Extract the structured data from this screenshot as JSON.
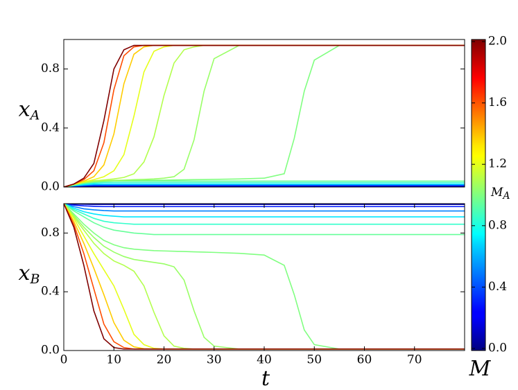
{
  "chart_data": [
    {
      "type": "line",
      "ylabel": {
        "main": "x",
        "sub": "A"
      },
      "x": [
        0,
        2,
        4,
        6,
        8,
        10,
        12,
        14,
        16,
        18,
        20,
        22,
        24,
        26,
        28,
        30,
        35,
        40,
        44,
        46,
        48,
        50,
        55,
        60,
        70,
        80
      ],
      "xlim": [
        0,
        80
      ],
      "ylim": [
        0,
        1
      ],
      "yticks": [
        {
          "value": 0,
          "label": "0.0"
        },
        0.4,
        0.8
      ],
      "series": [
        {
          "color": "#0000b3",
          "values": [
            0,
            0.003,
            0.004,
            0.005,
            0.005,
            0.005,
            0.005,
            0.005,
            0.005,
            0.005,
            0.005,
            0.005,
            0.005,
            0.005,
            0.005,
            0.005,
            0.005,
            0.005,
            0.005,
            0.005,
            0.005,
            0.005,
            0.005,
            0.005,
            0.005,
            0.005
          ]
        },
        {
          "color": "#001aff",
          "values": [
            0,
            0.005,
            0.008,
            0.01,
            0.01,
            0.01,
            0.01,
            0.01,
            0.01,
            0.01,
            0.01,
            0.01,
            0.01,
            0.01,
            0.01,
            0.01,
            0.01,
            0.01,
            0.01,
            0.01,
            0.01,
            0.01,
            0.01,
            0.01,
            0.01,
            0.01
          ]
        },
        {
          "color": "#0080ff",
          "values": [
            0,
            0.007,
            0.012,
            0.015,
            0.015,
            0.015,
            0.015,
            0.015,
            0.015,
            0.015,
            0.015,
            0.015,
            0.015,
            0.015,
            0.015,
            0.015,
            0.015,
            0.015,
            0.015,
            0.015,
            0.015,
            0.015,
            0.015,
            0.015,
            0.015,
            0.015
          ]
        },
        {
          "color": "#00e6ff",
          "values": [
            0,
            0.01,
            0.016,
            0.02,
            0.02,
            0.02,
            0.02,
            0.02,
            0.02,
            0.02,
            0.02,
            0.02,
            0.02,
            0.02,
            0.02,
            0.02,
            0.02,
            0.02,
            0.02,
            0.02,
            0.02,
            0.02,
            0.02,
            0.02,
            0.02,
            0.02
          ]
        },
        {
          "color": "#33ffcc",
          "values": [
            0,
            0.012,
            0.022,
            0.027,
            0.03,
            0.03,
            0.03,
            0.03,
            0.03,
            0.03,
            0.03,
            0.03,
            0.03,
            0.03,
            0.03,
            0.03,
            0.03,
            0.03,
            0.03,
            0.03,
            0.03,
            0.03,
            0.03,
            0.03,
            0.03,
            0.03
          ]
        },
        {
          "color": "#66ff99",
          "values": [
            0,
            0.014,
            0.026,
            0.033,
            0.037,
            0.04,
            0.04,
            0.04,
            0.04,
            0.04,
            0.04,
            0.04,
            0.04,
            0.04,
            0.04,
            0.04,
            0.04,
            0.04,
            0.04,
            0.04,
            0.04,
            0.04,
            0.04,
            0.04,
            0.04,
            0.04
          ]
        },
        {
          "color": "#80ff80",
          "values": [
            0,
            0.015,
            0.028,
            0.036,
            0.04,
            0.042,
            0.043,
            0.044,
            0.045,
            0.046,
            0.047,
            0.048,
            0.049,
            0.05,
            0.051,
            0.052,
            0.055,
            0.06,
            0.09,
            0.33,
            0.65,
            0.86,
            0.96,
            0.96,
            0.96,
            0.96
          ]
        },
        {
          "color": "#99ff66",
          "values": [
            0,
            0.016,
            0.03,
            0.038,
            0.042,
            0.045,
            0.047,
            0.05,
            0.052,
            0.055,
            0.06,
            0.07,
            0.12,
            0.32,
            0.65,
            0.87,
            0.96,
            0.96,
            0.96,
            0.96,
            0.96,
            0.96,
            0.96,
            0.96,
            0.96,
            0.96
          ]
        },
        {
          "color": "#b3ff4d",
          "values": [
            0,
            0.017,
            0.032,
            0.042,
            0.048,
            0.055,
            0.065,
            0.09,
            0.17,
            0.34,
            0.62,
            0.84,
            0.93,
            0.95,
            0.96,
            0.96,
            0.96,
            0.96,
            0.96,
            0.96,
            0.96,
            0.96,
            0.96,
            0.96,
            0.96,
            0.96
          ]
        },
        {
          "color": "#e6ff1a",
          "values": [
            0,
            0.018,
            0.035,
            0.05,
            0.07,
            0.11,
            0.22,
            0.48,
            0.78,
            0.92,
            0.95,
            0.96,
            0.96,
            0.96,
            0.96,
            0.96,
            0.96,
            0.96,
            0.96,
            0.96,
            0.96,
            0.96,
            0.96,
            0.96,
            0.96,
            0.96
          ]
        },
        {
          "color": "#ffcc00",
          "values": [
            0,
            0.02,
            0.04,
            0.07,
            0.15,
            0.36,
            0.7,
            0.9,
            0.95,
            0.96,
            0.96,
            0.96,
            0.96,
            0.96,
            0.96,
            0.96,
            0.96,
            0.96,
            0.96,
            0.96,
            0.96,
            0.96,
            0.96,
            0.96,
            0.96,
            0.96
          ]
        },
        {
          "color": "#ff4d00",
          "values": [
            0,
            0.02,
            0.05,
            0.11,
            0.3,
            0.66,
            0.89,
            0.95,
            0.96,
            0.96,
            0.96,
            0.96,
            0.96,
            0.96,
            0.96,
            0.96,
            0.96,
            0.96,
            0.96,
            0.96,
            0.96,
            0.96,
            0.96,
            0.96,
            0.96,
            0.96
          ]
        },
        {
          "color": "#800000",
          "values": [
            0,
            0.02,
            0.06,
            0.16,
            0.45,
            0.8,
            0.93,
            0.96,
            0.96,
            0.96,
            0.96,
            0.96,
            0.96,
            0.96,
            0.96,
            0.96,
            0.96,
            0.96,
            0.96,
            0.96,
            0.96,
            0.96,
            0.96,
            0.96,
            0.96,
            0.96
          ]
        }
      ]
    },
    {
      "type": "line",
      "ylabel": {
        "main": "x",
        "sub": "B"
      },
      "xlabel": "t",
      "x": [
        0,
        2,
        4,
        6,
        8,
        10,
        12,
        14,
        16,
        18,
        20,
        22,
        24,
        26,
        28,
        30,
        35,
        40,
        44,
        46,
        48,
        50,
        55,
        60,
        70,
        80
      ],
      "xlim": [
        0,
        80
      ],
      "ylim": [
        0,
        1
      ],
      "xticks": [
        0,
        10,
        20,
        30,
        40,
        50,
        60,
        70
      ],
      "yticks": [
        {
          "value": 0,
          "label": "0.0"
        },
        0.4,
        0.8
      ],
      "series": [
        {
          "color": "#0000b3",
          "values": [
            1,
            0.997,
            0.996,
            0.995,
            0.995,
            0.995,
            0.995,
            0.995,
            0.995,
            0.995,
            0.995,
            0.995,
            0.995,
            0.995,
            0.995,
            0.995,
            0.995,
            0.995,
            0.995,
            0.995,
            0.995,
            0.995,
            0.995,
            0.995,
            0.995,
            0.995
          ]
        },
        {
          "color": "#001aff",
          "values": [
            1,
            0.99,
            0.985,
            0.982,
            0.98,
            0.98,
            0.98,
            0.98,
            0.98,
            0.98,
            0.98,
            0.98,
            0.98,
            0.98,
            0.98,
            0.98,
            0.98,
            0.98,
            0.98,
            0.98,
            0.98,
            0.98,
            0.98,
            0.98,
            0.98,
            0.98
          ]
        },
        {
          "color": "#0080ff",
          "values": [
            1,
            0.98,
            0.965,
            0.958,
            0.953,
            0.95,
            0.95,
            0.95,
            0.95,
            0.95,
            0.95,
            0.95,
            0.95,
            0.95,
            0.95,
            0.95,
            0.95,
            0.95,
            0.95,
            0.95,
            0.95,
            0.95,
            0.95,
            0.95,
            0.95,
            0.95
          ]
        },
        {
          "color": "#00e6ff",
          "values": [
            1,
            0.97,
            0.945,
            0.93,
            0.92,
            0.915,
            0.91,
            0.91,
            0.91,
            0.91,
            0.91,
            0.91,
            0.91,
            0.91,
            0.91,
            0.91,
            0.91,
            0.91,
            0.91,
            0.91,
            0.91,
            0.91,
            0.91,
            0.91,
            0.91,
            0.91
          ]
        },
        {
          "color": "#33ffcc",
          "values": [
            1,
            0.96,
            0.93,
            0.9,
            0.88,
            0.87,
            0.865,
            0.86,
            0.86,
            0.86,
            0.86,
            0.86,
            0.86,
            0.86,
            0.86,
            0.86,
            0.86,
            0.86,
            0.86,
            0.86,
            0.86,
            0.86,
            0.86,
            0.86,
            0.86,
            0.86
          ]
        },
        {
          "color": "#66ff99",
          "values": [
            1,
            0.95,
            0.91,
            0.87,
            0.84,
            0.82,
            0.81,
            0.8,
            0.795,
            0.79,
            0.79,
            0.79,
            0.79,
            0.79,
            0.79,
            0.79,
            0.79,
            0.79,
            0.79,
            0.79,
            0.79,
            0.79,
            0.79,
            0.79,
            0.79,
            0.79
          ]
        },
        {
          "color": "#80ff80",
          "values": [
            1,
            0.93,
            0.86,
            0.8,
            0.75,
            0.72,
            0.7,
            0.69,
            0.685,
            0.68,
            0.678,
            0.676,
            0.674,
            0.672,
            0.67,
            0.668,
            0.662,
            0.65,
            0.58,
            0.38,
            0.14,
            0.04,
            0.01,
            0.01,
            0.01,
            0.01
          ]
        },
        {
          "color": "#99ff66",
          "values": [
            1,
            0.92,
            0.84,
            0.77,
            0.71,
            0.67,
            0.64,
            0.62,
            0.61,
            0.6,
            0.59,
            0.57,
            0.48,
            0.27,
            0.09,
            0.03,
            0.01,
            0.01,
            0.01,
            0.01,
            0.01,
            0.01,
            0.01,
            0.01,
            0.01,
            0.01
          ]
        },
        {
          "color": "#b3ff4d",
          "values": [
            1,
            0.91,
            0.82,
            0.73,
            0.66,
            0.61,
            0.58,
            0.54,
            0.44,
            0.26,
            0.1,
            0.03,
            0.015,
            0.01,
            0.01,
            0.01,
            0.01,
            0.01,
            0.01,
            0.01,
            0.01,
            0.01,
            0.01,
            0.01,
            0.01,
            0.01
          ]
        },
        {
          "color": "#e6ff1a",
          "values": [
            1,
            0.9,
            0.78,
            0.66,
            0.55,
            0.44,
            0.28,
            0.11,
            0.04,
            0.015,
            0.01,
            0.01,
            0.01,
            0.01,
            0.01,
            0.01,
            0.01,
            0.01,
            0.01,
            0.01,
            0.01,
            0.01,
            0.01,
            0.01,
            0.01,
            0.01
          ]
        },
        {
          "color": "#ffcc00",
          "values": [
            1,
            0.88,
            0.73,
            0.56,
            0.38,
            0.19,
            0.07,
            0.025,
            0.012,
            0.01,
            0.01,
            0.01,
            0.01,
            0.01,
            0.01,
            0.01,
            0.01,
            0.01,
            0.01,
            0.01,
            0.01,
            0.01,
            0.01,
            0.01,
            0.01,
            0.01
          ]
        },
        {
          "color": "#ff4d00",
          "values": [
            1,
            0.86,
            0.66,
            0.42,
            0.18,
            0.06,
            0.02,
            0.01,
            0.01,
            0.01,
            0.01,
            0.01,
            0.01,
            0.01,
            0.01,
            0.01,
            0.01,
            0.01,
            0.01,
            0.01,
            0.01,
            0.01,
            0.01,
            0.01,
            0.01,
            0.01
          ]
        },
        {
          "color": "#800000",
          "values": [
            1,
            0.84,
            0.58,
            0.27,
            0.08,
            0.02,
            0.01,
            0.01,
            0.01,
            0.01,
            0.01,
            0.01,
            0.01,
            0.01,
            0.01,
            0.01,
            0.01,
            0.01,
            0.01,
            0.01,
            0.01,
            0.01,
            0.01,
            0.01,
            0.01,
            0.01
          ]
        }
      ]
    },
    {
      "type": "colorbar",
      "label": {
        "main": "M",
        "sub": "A"
      },
      "xlabel": "M",
      "clim": [
        0,
        2
      ],
      "cticks": [
        {
          "value": 0,
          "label": "0.0"
        },
        0.4,
        0.8,
        1.2,
        1.6,
        {
          "value": 2,
          "label": "2.0"
        }
      ]
    }
  ]
}
